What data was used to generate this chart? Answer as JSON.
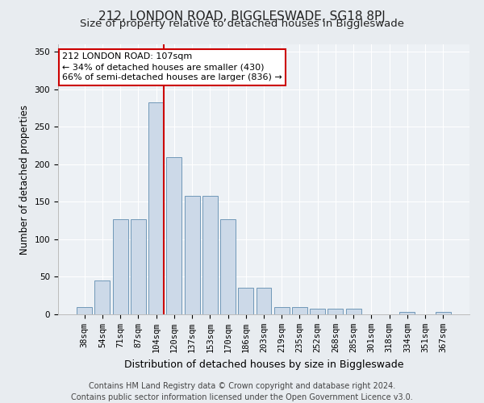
{
  "title": "212, LONDON ROAD, BIGGLESWADE, SG18 8PJ",
  "subtitle": "Size of property relative to detached houses in Biggleswade",
  "xlabel": "Distribution of detached houses by size in Biggleswade",
  "ylabel": "Number of detached properties",
  "categories": [
    "38sqm",
    "54sqm",
    "71sqm",
    "87sqm",
    "104sqm",
    "120sqm",
    "137sqm",
    "153sqm",
    "170sqm",
    "186sqm",
    "203sqm",
    "219sqm",
    "235sqm",
    "252sqm",
    "268sqm",
    "285sqm",
    "301sqm",
    "318sqm",
    "334sqm",
    "351sqm",
    "367sqm"
  ],
  "values": [
    10,
    45,
    127,
    127,
    283,
    210,
    158,
    158,
    127,
    35,
    35,
    10,
    10,
    8,
    8,
    8,
    0,
    0,
    3,
    0,
    3
  ],
  "bar_color": "#ccd9e8",
  "bar_edge_color": "#7098b8",
  "vline_color": "#cc0000",
  "annotation_text": "212 LONDON ROAD: 107sqm\n← 34% of detached houses are smaller (430)\n66% of semi-detached houses are larger (836) →",
  "annotation_box_color": "#ffffff",
  "annotation_box_edge_color": "#cc0000",
  "ylim": [
    0,
    360
  ],
  "yticks": [
    0,
    50,
    100,
    150,
    200,
    250,
    300,
    350
  ],
  "footer_line1": "Contains HM Land Registry data © Crown copyright and database right 2024.",
  "footer_line2": "Contains public sector information licensed under the Open Government Licence v3.0.",
  "background_color": "#e8ecf0",
  "plot_bg_color": "#edf1f5",
  "title_fontsize": 11,
  "subtitle_fontsize": 9.5,
  "xlabel_fontsize": 9,
  "ylabel_fontsize": 8.5,
  "tick_fontsize": 7.5,
  "footer_fontsize": 7
}
